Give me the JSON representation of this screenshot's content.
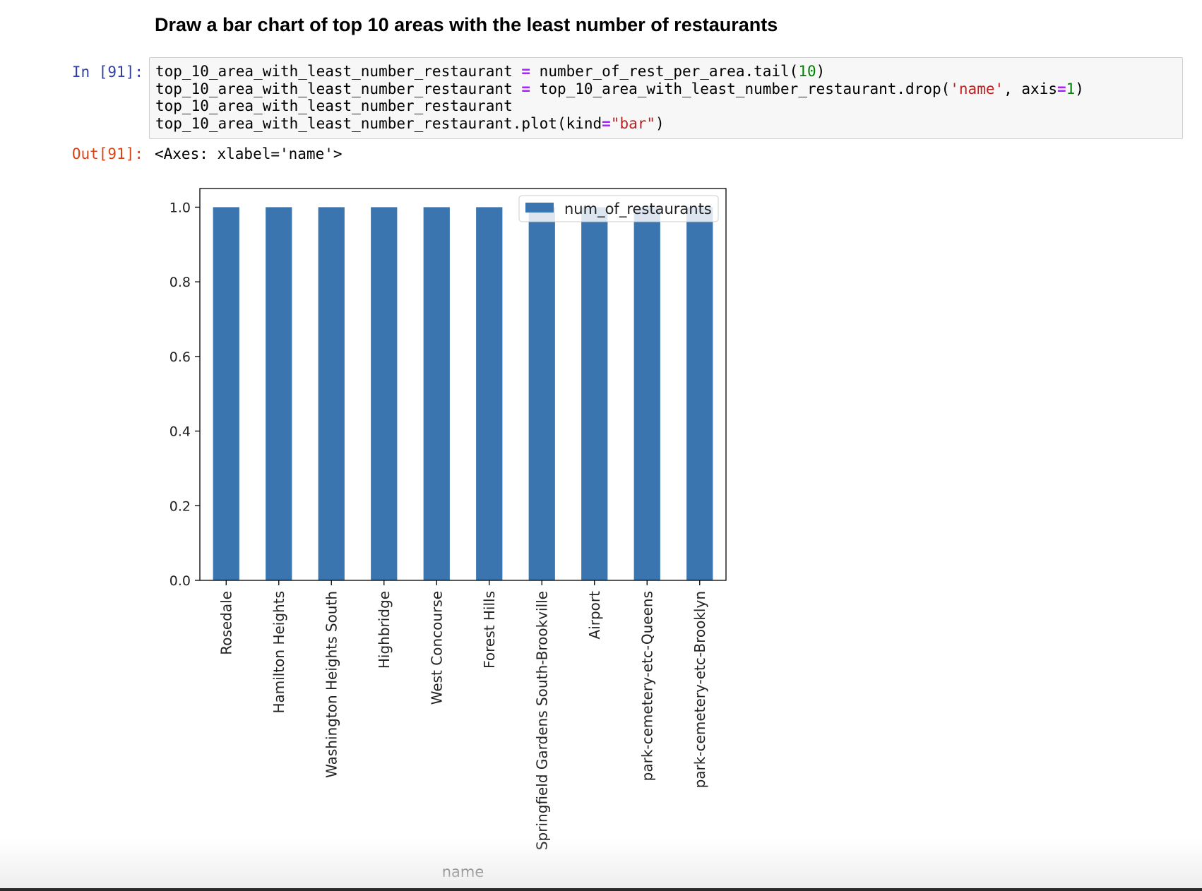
{
  "notebook": {
    "heading": "Draw a bar chart of top 10 areas with the least number of restaurants",
    "input_prompt": "In [91]:",
    "output_prompt": "Out[91]:",
    "code_lines": [
      [
        {
          "t": "top_10_area_with_least_number_restaurant "
        },
        {
          "t": "=",
          "c": "op"
        },
        {
          "t": " number_of_rest_per_area.tail("
        },
        {
          "t": "10",
          "c": "num"
        },
        {
          "t": ")"
        }
      ],
      [
        {
          "t": "top_10_area_with_least_number_restaurant "
        },
        {
          "t": "=",
          "c": "op"
        },
        {
          "t": " top_10_area_with_least_number_restaurant.drop("
        },
        {
          "t": "'name'",
          "c": "str"
        },
        {
          "t": ", axis"
        },
        {
          "t": "=",
          "c": "op"
        },
        {
          "t": "1",
          "c": "num"
        },
        {
          "t": ")"
        }
      ],
      [
        {
          "t": "top_10_area_with_least_number_restaurant"
        }
      ],
      [
        {
          "t": "top_10_area_with_least_number_restaurant.plot(kind"
        },
        {
          "t": "=",
          "c": "op"
        },
        {
          "t": "\"bar\"",
          "c": "str"
        },
        {
          "t": ")"
        }
      ]
    ],
    "output_text": "<Axes: xlabel='name'>"
  },
  "chart_data": {
    "type": "bar",
    "categories": [
      "Rosedale",
      "Hamilton Heights",
      "Washington Heights South",
      "Highbridge",
      "West Concourse",
      "Forest Hills",
      "Springfield Gardens South-Brookville",
      "Airport",
      "park-cemetery-etc-Queens",
      "park-cemetery-etc-Brooklyn"
    ],
    "series": [
      {
        "name": "num_of_restaurants",
        "values": [
          1,
          1,
          1,
          1,
          1,
          1,
          1,
          1,
          1,
          1
        ],
        "color": "#3a75af"
      }
    ],
    "xlabel": "name",
    "ylabel": "",
    "ylim": [
      0,
      1.05
    ],
    "yticks": [
      "0.0",
      "0.2",
      "0.4",
      "0.6",
      "0.8",
      "1.0"
    ],
    "legend": "upper right",
    "grid": false
  }
}
